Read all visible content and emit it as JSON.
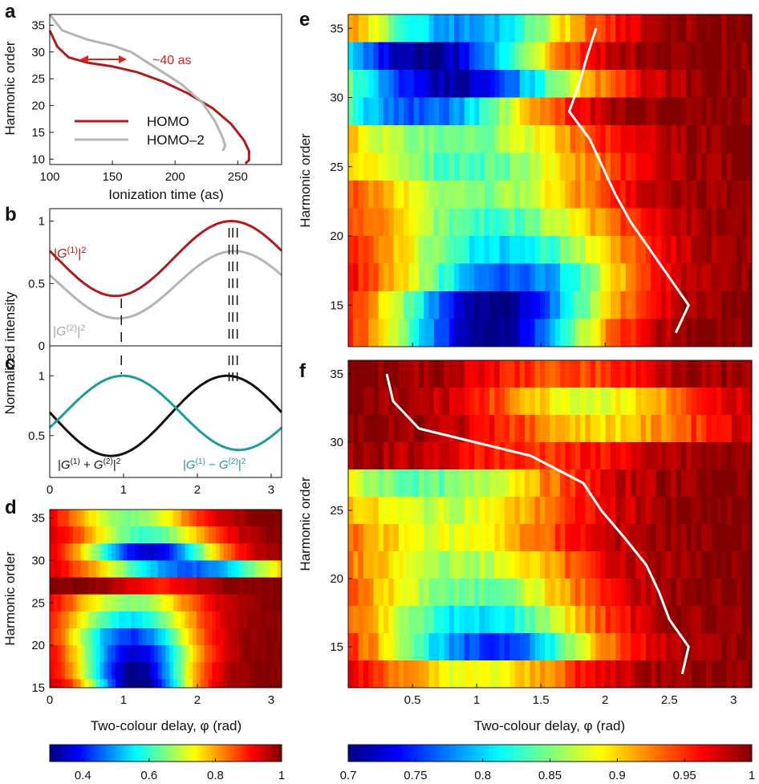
{
  "panels": {
    "a": "a",
    "b": "b",
    "c": "c",
    "d": "d",
    "e": "e",
    "f": "f"
  },
  "colors": {
    "homo": "#b01c1c",
    "homo2": "#b4b4b4",
    "plus": "#111111",
    "minus": "#1f9b9b",
    "annotation": "#e02020",
    "path": "#ffffff"
  },
  "chart_data": [
    {
      "id": "a",
      "type": "line",
      "xlabel": "Ionization time (as)",
      "ylabel": "Harmonic order",
      "xlim": [
        100,
        285
      ],
      "ylim": [
        9,
        37
      ],
      "xticks": [
        100,
        150,
        200,
        250
      ],
      "yticks": [
        10,
        15,
        20,
        25,
        30,
        35
      ],
      "legend_position": "lower-left",
      "annotation": "~40 as",
      "series": [
        {
          "name": "HOMO",
          "color": "#b01c1c",
          "points": [
            [
              100,
              34
            ],
            [
              106,
              31
            ],
            [
              115,
              29
            ],
            [
              130,
              28
            ],
            [
              150,
              27.3
            ],
            [
              170,
              26.2
            ],
            [
              190,
              24.5
            ],
            [
              210,
              22.3
            ],
            [
              230,
              19.5
            ],
            [
              245,
              16.5
            ],
            [
              255,
              13.5
            ],
            [
              259,
              11.5
            ],
            [
              259,
              9.8
            ],
            [
              256,
              9.2
            ]
          ]
        },
        {
          "name": "HOMO–2",
          "color": "#b4b4b4",
          "points": [
            [
              100,
              37
            ],
            [
              110,
              34
            ],
            [
              130,
              32.3
            ],
            [
              150,
              31.2
            ],
            [
              165,
              30
            ],
            [
              185,
              27
            ],
            [
              205,
              24
            ],
            [
              222,
              20.5
            ],
            [
              232,
              17
            ],
            [
              238,
              14
            ],
            [
              240,
              12.5
            ],
            [
              238,
              11.5
            ]
          ]
        }
      ]
    },
    {
      "id": "b",
      "type": "line",
      "ylabel": "Normalized intensity",
      "xlim": [
        0,
        3.1416
      ],
      "ylim": [
        0,
        1.1
      ],
      "yticks": [
        0,
        0.5,
        1
      ],
      "series": [
        {
          "name": "|G(1)|2",
          "color": "#b01c1c",
          "baseline": 0.7,
          "amplitude": 0.3,
          "peak": 2.46
        },
        {
          "name": "|G(2)|2",
          "color": "#b4b4b4",
          "baseline": 0.49,
          "amplitude": 0.27,
          "peak": 2.5
        }
      ],
      "markers": [
        0.97,
        2.43,
        2.48,
        2.54
      ]
    },
    {
      "id": "c",
      "type": "line",
      "xlim": [
        0,
        3.1416
      ],
      "ylim": [
        0.15,
        1.25
      ],
      "xticks": [
        0,
        1,
        2,
        3
      ],
      "yticks": [
        0.5,
        1
      ],
      "series": [
        {
          "name": "|G(1) + G(2)|2",
          "color": "#111111",
          "baseline": 0.665,
          "amplitude": 0.335,
          "peak": 2.4
        },
        {
          "name": "|G(1) − G(2)|2",
          "color": "#1f9b9b",
          "baseline": 0.69,
          "amplitude": 0.31,
          "peak": 0.99
        }
      ]
    },
    {
      "id": "d",
      "type": "heatmap",
      "xlabel": "Two-colour delay, φ (rad)",
      "ylabel": "Harmonic order",
      "xlim": [
        0,
        3.1416
      ],
      "ylim": [
        15,
        36
      ],
      "xticks": [
        0,
        1,
        2,
        3
      ],
      "yticks": [
        15,
        20,
        25,
        30,
        35
      ],
      "rows": [
        {
          "order": 35,
          "center": 1.1,
          "width": 0.9,
          "depth": 0.35
        },
        {
          "order": 33,
          "center": 1.3,
          "width": 0.9,
          "depth": 0.4
        },
        {
          "order": 31,
          "center": 1.35,
          "width": 0.9,
          "depth": 0.65
        },
        {
          "order": 29,
          "center": 1.9,
          "width": 1.3,
          "depth": 0.55
        },
        {
          "order": 27,
          "center": 1.5,
          "width": 0.6,
          "depth": 0.1
        },
        {
          "order": 25,
          "center": 1.1,
          "width": 0.9,
          "depth": 0.35
        },
        {
          "order": 23,
          "center": 1.1,
          "width": 0.9,
          "depth": 0.45
        },
        {
          "order": 21,
          "center": 1.1,
          "width": 0.85,
          "depth": 0.58
        },
        {
          "order": 19,
          "center": 1.15,
          "width": 0.8,
          "depth": 0.65
        },
        {
          "order": 17,
          "center": 1.15,
          "width": 0.75,
          "depth": 0.7
        },
        {
          "order": 15,
          "center": 1.2,
          "width": 0.7,
          "depth": 0.72
        }
      ],
      "colorbar": {
        "min": 0.3,
        "max": 1,
        "ticks": [
          0.4,
          0.6,
          0.8,
          1
        ]
      }
    },
    {
      "id": "e",
      "type": "heatmap",
      "ylabel": "Harmonic order",
      "xlim": [
        0,
        3.1416
      ],
      "ylim": [
        12,
        36
      ],
      "yticks": [
        15,
        20,
        25,
        30,
        35
      ],
      "rows": [
        {
          "order": 35,
          "center": 0.9,
          "width": 0.9,
          "depth": 0.22
        },
        {
          "order": 33,
          "center": 0.6,
          "width": 0.9,
          "depth": 0.3
        },
        {
          "order": 31,
          "center": 0.8,
          "width": 1.0,
          "depth": 0.29
        },
        {
          "order": 29,
          "center": 0.55,
          "width": 0.9,
          "depth": 0.24
        },
        {
          "order": 27,
          "center": 0.8,
          "width": 1.1,
          "depth": 0.16
        },
        {
          "order": 25,
          "center": 0.9,
          "width": 1.1,
          "depth": 0.17
        },
        {
          "order": 23,
          "center": 1.0,
          "width": 1.0,
          "depth": 0.15
        },
        {
          "order": 21,
          "center": 1.1,
          "width": 1.0,
          "depth": 0.17
        },
        {
          "order": 19,
          "center": 1.2,
          "width": 0.95,
          "depth": 0.2
        },
        {
          "order": 17,
          "center": 1.25,
          "width": 0.9,
          "depth": 0.24
        },
        {
          "order": 15,
          "center": 1.15,
          "width": 0.85,
          "depth": 0.3
        },
        {
          "order": 13,
          "center": 1.1,
          "width": 0.8,
          "depth": 0.3
        }
      ],
      "path": [
        [
          2.55,
          13
        ],
        [
          2.65,
          15
        ],
        [
          2.5,
          17
        ],
        [
          2.35,
          19
        ],
        [
          2.2,
          21
        ],
        [
          2.08,
          23
        ],
        [
          1.98,
          25
        ],
        [
          1.88,
          27
        ],
        [
          1.72,
          29
        ],
        [
          1.8,
          31
        ],
        [
          1.86,
          33
        ],
        [
          1.93,
          35
        ]
      ],
      "colorbar": {
        "min": 0.7,
        "max": 1,
        "ticks": [
          0.7,
          0.75,
          0.8,
          0.85,
          0.9,
          0.95,
          1
        ]
      }
    },
    {
      "id": "f",
      "type": "heatmap",
      "xlabel": "Two-colour delay, φ (rad)",
      "ylabel": "Harmonic order",
      "xlim": [
        0,
        3.1416
      ],
      "ylim": [
        12,
        36
      ],
      "xticks": [
        0.5,
        1,
        1.5,
        2,
        2.5,
        3
      ],
      "yticks": [
        15,
        20,
        25,
        30,
        35
      ],
      "rows": [
        {
          "order": 35,
          "center": 1.7,
          "width": 0.8,
          "depth": 0.06
        },
        {
          "order": 33,
          "center": 1.9,
          "width": 0.9,
          "depth": 0.12
        },
        {
          "order": 31,
          "center": 2.0,
          "width": 0.9,
          "depth": 0.1
        },
        {
          "order": 29,
          "center": 1.5,
          "width": 1.0,
          "depth": 0.05
        },
        {
          "order": 27,
          "center": 0.6,
          "width": 1.1,
          "depth": 0.16
        },
        {
          "order": 25,
          "center": 0.7,
          "width": 1.1,
          "depth": 0.13
        },
        {
          "order": 23,
          "center": 0.75,
          "width": 1.0,
          "depth": 0.12
        },
        {
          "order": 21,
          "center": 0.85,
          "width": 1.0,
          "depth": 0.14
        },
        {
          "order": 19,
          "center": 0.95,
          "width": 0.95,
          "depth": 0.16
        },
        {
          "order": 17,
          "center": 1.0,
          "width": 0.9,
          "depth": 0.2
        },
        {
          "order": 15,
          "center": 1.1,
          "width": 0.85,
          "depth": 0.25
        },
        {
          "order": 13,
          "center": 1.0,
          "width": 0.85,
          "depth": 0.12
        }
      ],
      "path": [
        [
          2.6,
          13
        ],
        [
          2.65,
          15
        ],
        [
          2.5,
          17
        ],
        [
          2.42,
          19
        ],
        [
          2.32,
          21
        ],
        [
          2.15,
          23
        ],
        [
          1.97,
          25
        ],
        [
          1.83,
          27
        ],
        [
          1.42,
          29
        ],
        [
          0.55,
          31
        ],
        [
          0.35,
          33
        ],
        [
          0.3,
          35
        ]
      ]
    }
  ]
}
